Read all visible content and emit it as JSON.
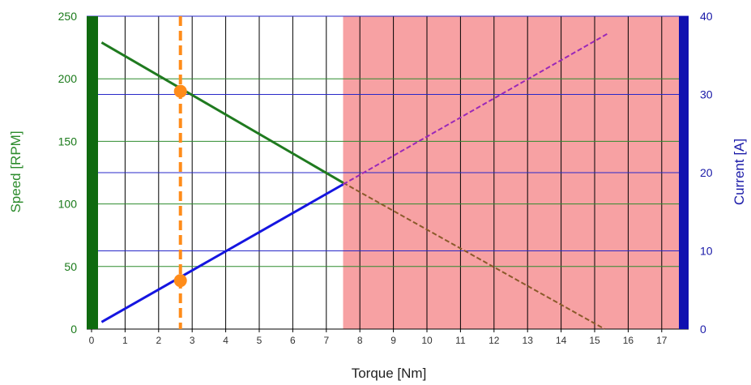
{
  "chart_data": {
    "type": "line",
    "x_axis": {
      "label": "Torque [Nm]",
      "range": [
        0,
        17.8
      ],
      "ticks": [
        0,
        1,
        2,
        3,
        4,
        5,
        6,
        7,
        8,
        9,
        10,
        11,
        12,
        13,
        14,
        15,
        16,
        17
      ]
    },
    "y_left": {
      "label": "Speed [RPM]",
      "range": [
        0,
        250
      ],
      "ticks": [
        0,
        50,
        100,
        150,
        200,
        250
      ],
      "color": "#1a7a1a"
    },
    "y_right": {
      "label": "Current [A]",
      "range": [
        0,
        40
      ],
      "ticks": [
        0,
        10,
        20,
        30,
        40
      ],
      "color": "#1a1aa8"
    },
    "grid": true,
    "overload_region": {
      "x_start": 7.5,
      "x_end": 17.8,
      "color": "#f7a1a3"
    },
    "operating_point": {
      "torque": 2.65,
      "speed": 190,
      "current": 6.2
    },
    "series": [
      {
        "axis": "left",
        "color": "#1f7a1f",
        "style": "solid",
        "points": [
          [
            0.3,
            229
          ],
          [
            7.5,
            117
          ]
        ]
      },
      {
        "axis": "left",
        "color": "#8a5a2a",
        "style": "dashed",
        "points": [
          [
            7.5,
            117
          ],
          [
            15.3,
            0
          ]
        ]
      },
      {
        "axis": "right",
        "color": "#1515e0",
        "style": "solid",
        "points": [
          [
            0.3,
            0.9
          ],
          [
            7.5,
            18.5
          ]
        ]
      },
      {
        "axis": "right",
        "color": "#9a28b8",
        "style": "dashed",
        "points": [
          [
            7.5,
            18.5
          ],
          [
            15.4,
            37.8
          ]
        ]
      }
    ],
    "colors": {
      "speed_bar": "#0f6a0f",
      "current_bar": "#1010b0",
      "marker": "#ff8c1a"
    }
  }
}
